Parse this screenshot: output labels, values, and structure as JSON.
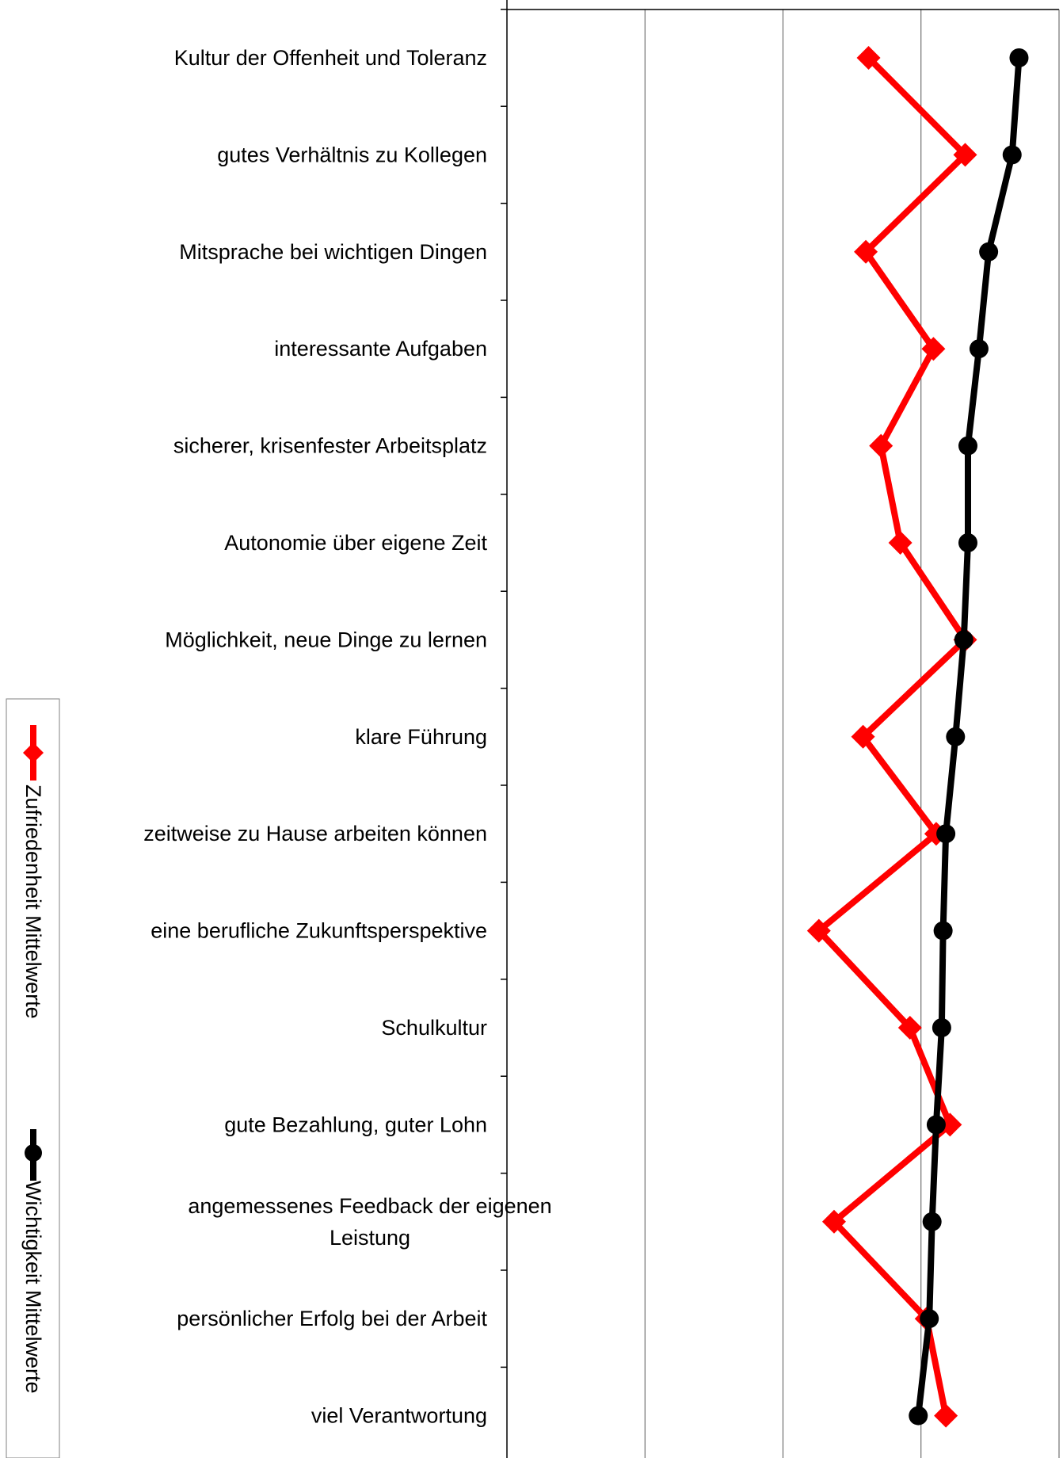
{
  "chart_data": {
    "type": "line",
    "orientation": "horizontal",
    "categories": [
      "Kultur der Offenheit und Toleranz",
      "gutes Verhältnis zu Kollegen",
      "Mitsprache bei wichtigen Dingen",
      "interessante Aufgaben",
      "sicherer, krisenfester Arbeitsplatz",
      "Autonomie über eigene Zeit",
      "Möglichkeit, neue Dinge zu lernen",
      "klare Führung",
      "zeitweise zu Hause arbeiten können",
      "eine berufliche Zukunftsperspektive",
      "Schulkultur",
      "gute Bezahlung, guter Lohn",
      "angemessenes Feedback der eigenen Leistung",
      "persönlicher Erfolg bei der Arbeit",
      "viel Verantwortung"
    ],
    "xlim": [
      1,
      5
    ],
    "grid": true,
    "legend_position": "left-vertical",
    "series": [
      {
        "name": "Zufriedenheit Mittelwerte",
        "color": "#ff0000",
        "marker": "diamond",
        "values": [
          3.62,
          4.32,
          3.6,
          4.09,
          3.71,
          3.85,
          4.32,
          3.58,
          4.11,
          3.26,
          3.92,
          4.21,
          3.37,
          4.04,
          4.18
        ]
      },
      {
        "name": "Wichtigkeit Mittelwerte",
        "color": "#000000",
        "marker": "circle",
        "values": [
          4.71,
          4.66,
          4.49,
          4.42,
          4.34,
          4.34,
          4.31,
          4.25,
          4.18,
          4.16,
          4.15,
          4.11,
          4.08,
          4.06,
          3.98
        ]
      }
    ]
  }
}
